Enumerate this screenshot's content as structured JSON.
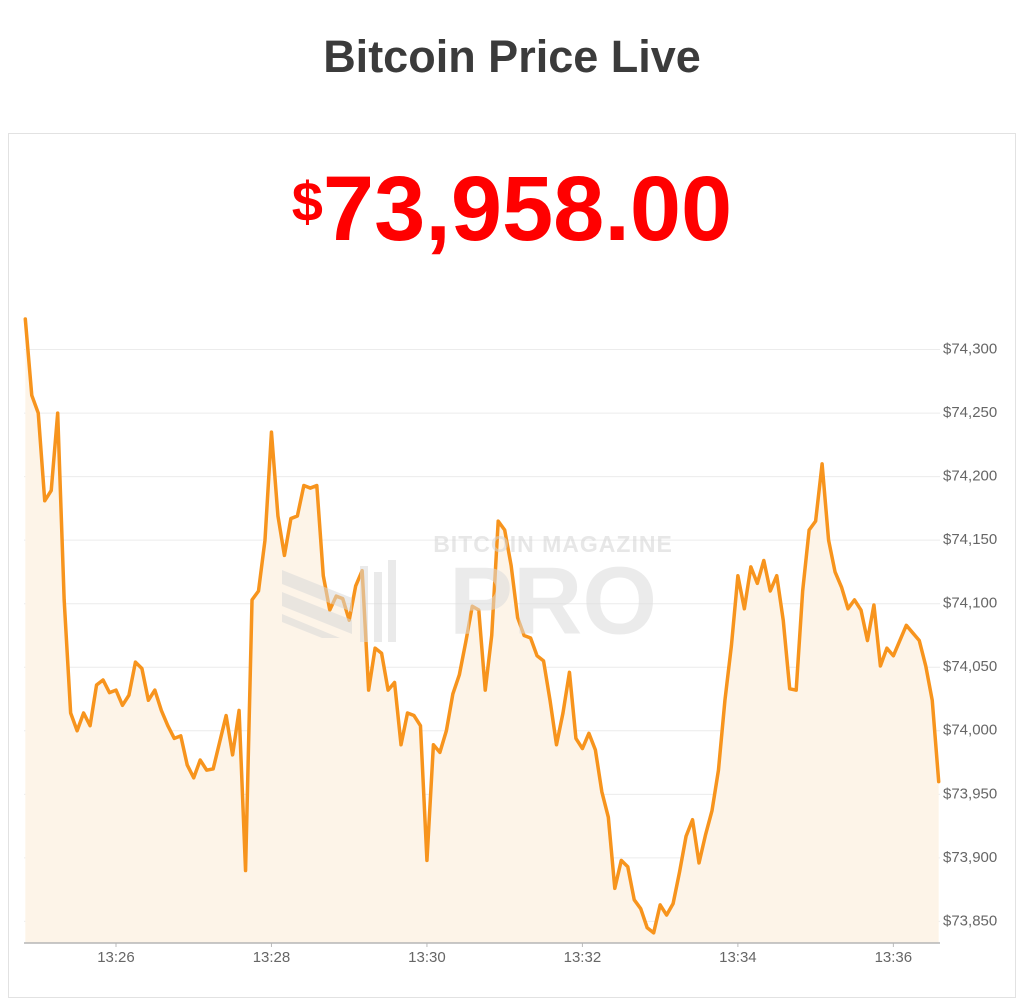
{
  "header": {
    "title": "Bitcoin Price Live"
  },
  "price_display": {
    "currency": "$",
    "amount": "73,958.00"
  },
  "watermark": {
    "line1": "BITCOIN MAGAZINE",
    "line2": "PRO"
  },
  "chart_data": {
    "type": "area",
    "x": [
      1490,
      1495,
      1500,
      1505,
      1510,
      1515,
      1520,
      1525,
      1530,
      1535,
      1540,
      1545,
      1550,
      1555,
      1560,
      1565,
      1570,
      1575,
      1580,
      1585,
      1590,
      1595,
      1600,
      1605,
      1610,
      1615,
      1620,
      1625,
      1630,
      1635,
      1640,
      1645,
      1650,
      1655,
      1660,
      1665,
      1670,
      1675,
      1680,
      1685,
      1690,
      1695,
      1700,
      1705,
      1710,
      1715,
      1720,
      1725,
      1730,
      1735,
      1740,
      1745,
      1750,
      1755,
      1760,
      1765,
      1770,
      1775,
      1780,
      1785,
      1790,
      1795,
      1800,
      1805,
      1810,
      1815,
      1820,
      1825,
      1830,
      1835,
      1840,
      1845,
      1850,
      1855,
      1860,
      1865,
      1870,
      1875,
      1880,
      1885,
      1890,
      1895,
      1900,
      1905,
      1910,
      1915,
      1920,
      1925,
      1930,
      1935,
      1940,
      1945,
      1950,
      1955,
      1960,
      1965,
      1970,
      1975,
      1980,
      1985,
      1990,
      1995,
      2000,
      2005,
      2010,
      2015,
      2020,
      2025,
      2030,
      2035,
      2040,
      2045,
      2050,
      2055,
      2060,
      2065,
      2070,
      2075,
      2080,
      2085,
      2090,
      2095,
      2100,
      2105,
      2110,
      2115,
      2120,
      2125,
      2130,
      2135,
      2140,
      2145,
      2150,
      2155,
      2160,
      2165,
      2170,
      2175,
      2180,
      2185,
      2190,
      2195
    ],
    "series": [
      {
        "color": "#f7941d",
        "fill": "#fdf4e8",
        "values": [
          74324,
          74264,
          74250,
          74181,
          74189,
          74250,
          74103,
          74014,
          74000,
          74014,
          74004,
          74036,
          74040,
          74030,
          74032,
          74020,
          74028,
          74054,
          74049,
          74024,
          74032,
          74016,
          74004,
          73994,
          73996,
          73973,
          73963,
          73977,
          73969,
          73970,
          73991,
          74012,
          73981,
          74016,
          73890,
          74103,
          74110,
          74150,
          74235,
          74169,
          74138,
          74167,
          74169,
          74193,
          74191,
          74193,
          74122,
          74095,
          74106,
          74104,
          74087,
          74114,
          74126,
          74032,
          74065,
          74061,
          74032,
          74038,
          73989,
          74014,
          74012,
          74004,
          73898,
          73989,
          73983,
          74000,
          74029,
          74044,
          74070,
          74098,
          74095,
          74032,
          74075,
          74165,
          74158,
          74130,
          74089,
          74075,
          74073,
          74059,
          74055,
          74024,
          73989,
          74014,
          74046,
          73994,
          73986,
          73998,
          73985,
          73952,
          73932,
          73876,
          73898,
          73893,
          73867,
          73860,
          73845,
          73841,
          73863,
          73855,
          73864,
          73889,
          73917,
          73930,
          73896,
          73918,
          73937,
          73969,
          74024,
          74067,
          74122,
          74096,
          74129,
          74116,
          74134,
          74110,
          74122,
          74087,
          74033,
          74032,
          74110,
          74158,
          74165,
          74210,
          74150,
          74125,
          74113,
          74096,
          74103,
          74095,
          74071,
          74099,
          74051,
          74065,
          74059,
          74071,
          74083,
          74077,
          74071,
          74051,
          74024,
          73960
        ]
      }
    ],
    "xlim": [
      1489,
      2196
    ],
    "xticks": [
      {
        "value": 1560,
        "label": "13:26"
      },
      {
        "value": 1680,
        "label": "13:28"
      },
      {
        "value": 1800,
        "label": "13:30"
      },
      {
        "value": 1920,
        "label": "13:32"
      },
      {
        "value": 2040,
        "label": "13:34"
      },
      {
        "value": 2160,
        "label": "13:36"
      }
    ],
    "ylim": [
      73833,
      74350
    ],
    "yticks": [
      {
        "value": 73850,
        "label": "$73,850"
      },
      {
        "value": 73900,
        "label": "$73,900"
      },
      {
        "value": 73950,
        "label": "$73,950"
      },
      {
        "value": 74000,
        "label": "$74,000"
      },
      {
        "value": 74050,
        "label": "$74,050"
      },
      {
        "value": 74100,
        "label": "$74,100"
      },
      {
        "value": 74150,
        "label": "$74,150"
      },
      {
        "value": 74200,
        "label": "$74,200"
      },
      {
        "value": 74250,
        "label": "$74,250"
      },
      {
        "value": 74300,
        "label": "$74,300"
      }
    ],
    "grid": true
  }
}
